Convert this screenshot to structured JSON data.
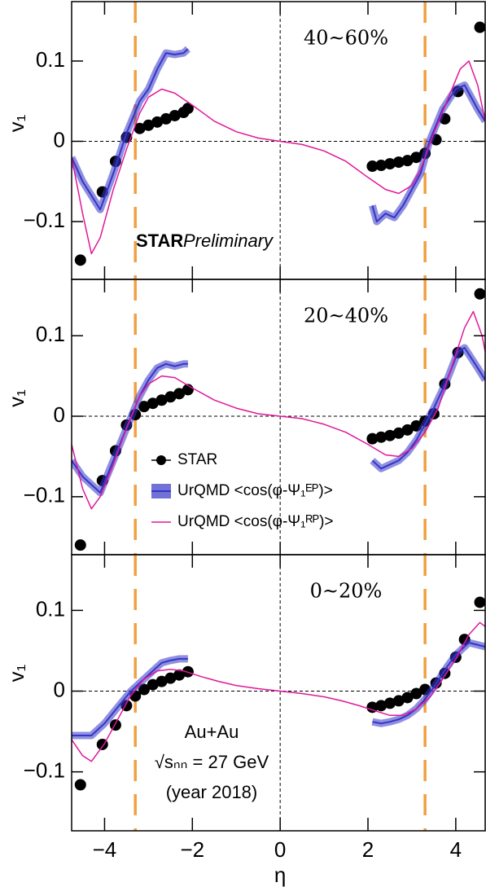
{
  "chart_data": [
    {
      "type": "line",
      "title": "40~60%",
      "ylabel": "v₁",
      "xlim": [
        -4.75,
        4.67
      ],
      "ylim": [
        -0.172,
        0.174
      ],
      "xticks": [
        -4,
        -2,
        0,
        2,
        4
      ],
      "yticks": [
        {
          "value": -0.1,
          "label": "−0.1"
        },
        0,
        0.1
      ],
      "hlines": [
        {
          "y": 0,
          "color": "#000000"
        }
      ],
      "vlines": [
        {
          "x": 0,
          "color": "#000000"
        },
        {
          "x": -3.3,
          "color": "#f0a040"
        },
        {
          "x": 3.3,
          "color": "#f0a040"
        }
      ],
      "annotations": [
        "STAR",
        "Preliminary"
      ],
      "series": [
        {
          "style": "markers",
          "color": "#000000",
          "x": [
            -4.55,
            -4.05,
            -3.75,
            -3.5,
            -3.2,
            -3.0,
            -2.8,
            -2.6,
            -2.4,
            -2.2,
            -2.1,
            2.1,
            2.3,
            2.5,
            2.7,
            2.9,
            3.1,
            3.3,
            3.55,
            3.75,
            4.05,
            4.55
          ],
          "values": [
            -0.148,
            -0.063,
            -0.025,
            0.005,
            0.016,
            0.02,
            0.024,
            0.028,
            0.032,
            0.036,
            0.041,
            -0.031,
            -0.03,
            -0.028,
            -0.026,
            -0.024,
            -0.02,
            -0.015,
            0.002,
            0.028,
            0.062,
            0.142
          ]
        },
        {
          "style": "band",
          "color": "#3535c8",
          "x": [
            -4.75,
            -4.5,
            -4.1,
            -3.8,
            -3.5,
            -3.2,
            -3.0,
            -2.8,
            -2.6,
            -2.4,
            -2.2,
            -2.1,
            0,
            2.1,
            2.2,
            2.4,
            2.6,
            2.8,
            3.0,
            3.2,
            3.4,
            3.7,
            4.0,
            4.2,
            4.5,
            4.67
          ],
          "values": [
            -0.02,
            -0.05,
            -0.085,
            -0.04,
            0.01,
            0.05,
            0.065,
            0.09,
            0.11,
            0.108,
            0.11,
            0.115,
            null,
            -0.08,
            -0.1,
            -0.09,
            -0.095,
            -0.08,
            -0.06,
            -0.04,
            0.0,
            0.04,
            0.065,
            0.07,
            0.04,
            0.025
          ]
        },
        {
          "style": "line",
          "color": "#e0189a",
          "x": [
            -4.75,
            -4.5,
            -4.3,
            -4.1,
            -3.8,
            -3.5,
            -3.2,
            -3.0,
            -2.7,
            -2.4,
            -2.0,
            -1.5,
            -1.0,
            -0.5,
            0,
            0.5,
            1.0,
            1.5,
            2.0,
            2.4,
            2.7,
            3.0,
            3.2,
            3.5,
            3.8,
            4.1,
            4.3,
            4.5,
            4.67
          ],
          "values": [
            -0.02,
            -0.09,
            -0.14,
            -0.12,
            -0.06,
            -0.01,
            0.035,
            0.055,
            0.065,
            0.06,
            0.045,
            0.025,
            0.012,
            0.004,
            0,
            -0.004,
            -0.012,
            -0.025,
            -0.045,
            -0.06,
            -0.065,
            -0.055,
            -0.035,
            0.01,
            0.05,
            0.09,
            0.1,
            0.07,
            0.025
          ]
        }
      ]
    },
    {
      "type": "line",
      "title": "20~40%",
      "ylabel": "v₁",
      "xlim": [
        -4.75,
        4.67
      ],
      "ylim": [
        -0.172,
        0.17
      ],
      "xticks": [
        -4,
        -2,
        0,
        2,
        4
      ],
      "yticks": [
        {
          "value": -0.1,
          "label": "−0.1"
        },
        0,
        0.1
      ],
      "hlines": [
        {
          "y": 0,
          "color": "#000000"
        }
      ],
      "vlines": [
        {
          "x": 0,
          "color": "#000000"
        },
        {
          "x": -3.3,
          "color": "#f0a040"
        },
        {
          "x": 3.3,
          "color": "#f0a040"
        }
      ],
      "series": [
        {
          "name": "STAR",
          "style": "markers",
          "color": "#000000",
          "x": [
            -4.55,
            -4.05,
            -3.75,
            -3.5,
            -3.3,
            -3.1,
            -2.9,
            -2.7,
            -2.5,
            -2.3,
            -2.1,
            2.1,
            2.3,
            2.5,
            2.7,
            2.9,
            3.1,
            3.3,
            3.5,
            3.75,
            4.05,
            4.55
          ],
          "values": [
            -0.16,
            -0.08,
            -0.043,
            -0.011,
            0.002,
            0.012,
            0.016,
            0.02,
            0.024,
            0.028,
            0.033,
            -0.028,
            -0.026,
            -0.024,
            -0.021,
            -0.017,
            -0.012,
            -0.006,
            0.003,
            0.04,
            0.079,
            0.152
          ]
        },
        {
          "name": "UrQMD <cos(φ-Ψ₁ᴱᴾ)>",
          "style": "band",
          "color": "#3535c8",
          "x": [
            -4.75,
            -4.5,
            -4.1,
            -3.8,
            -3.5,
            -3.2,
            -3.0,
            -2.8,
            -2.6,
            -2.4,
            -2.2,
            -2.1,
            0,
            2.1,
            2.3,
            2.5,
            2.7,
            2.9,
            3.1,
            3.3,
            3.5,
            3.8,
            4.05,
            4.2,
            4.5,
            4.67
          ],
          "values": [
            -0.055,
            -0.075,
            -0.095,
            -0.055,
            -0.015,
            0.025,
            0.045,
            0.06,
            0.065,
            0.062,
            0.065,
            0.065,
            null,
            -0.055,
            -0.065,
            -0.06,
            -0.055,
            -0.045,
            -0.03,
            -0.01,
            0.01,
            0.045,
            0.08,
            0.085,
            0.06,
            0.045
          ]
        },
        {
          "name": "UrQMD <cos(φ-Ψ₁ᴿᴾ)>",
          "style": "line",
          "color": "#e0189a",
          "x": [
            -4.75,
            -4.5,
            -4.3,
            -4.1,
            -3.8,
            -3.5,
            -3.2,
            -3.0,
            -2.7,
            -2.4,
            -2.0,
            -1.5,
            -1.0,
            -0.5,
            0,
            0.5,
            1.0,
            1.5,
            2.0,
            2.4,
            2.7,
            3.0,
            3.3,
            3.6,
            3.9,
            4.2,
            4.4,
            4.6,
            4.67
          ],
          "values": [
            -0.035,
            -0.09,
            -0.115,
            -0.1,
            -0.06,
            -0.015,
            0.025,
            0.04,
            0.05,
            0.048,
            0.035,
            0.02,
            0.01,
            0.003,
            0,
            -0.003,
            -0.01,
            -0.02,
            -0.035,
            -0.048,
            -0.05,
            -0.04,
            -0.02,
            0.01,
            0.06,
            0.11,
            0.13,
            0.1,
            0.08
          ]
        }
      ]
    },
    {
      "type": "line",
      "title": "0~20%",
      "ylabel": "v₁",
      "xlabel": "η",
      "xlim": [
        -4.75,
        4.67
      ],
      "ylim": [
        -0.173,
        0.169
      ],
      "xticks": [
        {
          "value": -4,
          "label": "−4"
        },
        {
          "value": -2,
          "label": "−2"
        },
        0,
        2,
        4
      ],
      "yticks": [
        {
          "value": -0.1,
          "label": "−0.1"
        },
        0,
        0.1
      ],
      "hlines": [
        {
          "y": 0,
          "color": "#000000"
        }
      ],
      "vlines": [
        {
          "x": 0,
          "color": "#000000"
        },
        {
          "x": -3.3,
          "color": "#f0a040"
        },
        {
          "x": 3.3,
          "color": "#f0a040"
        }
      ],
      "annotations": [
        "Au+Au",
        "√sₙₙ = 27 GeV",
        "(year 2018)"
      ],
      "series": [
        {
          "style": "markers",
          "color": "#000000",
          "x": [
            -4.55,
            -4.05,
            -3.75,
            -3.5,
            -3.3,
            -3.1,
            -2.9,
            -2.7,
            -2.5,
            -2.3,
            -2.1,
            2.1,
            2.3,
            2.5,
            2.7,
            2.9,
            3.1,
            3.3,
            3.55,
            3.75,
            4.0,
            4.2,
            4.55
          ],
          "values": [
            -0.116,
            -0.066,
            -0.042,
            -0.018,
            -0.006,
            0.002,
            0.008,
            0.012,
            0.016,
            0.02,
            0.024,
            -0.02,
            -0.018,
            -0.015,
            -0.012,
            -0.008,
            -0.003,
            0.002,
            0.01,
            0.022,
            0.042,
            0.064,
            0.11
          ]
        },
        {
          "style": "band",
          "color": "#3535c8",
          "x": [
            -4.75,
            -4.3,
            -4.0,
            -3.7,
            -3.4,
            -3.1,
            -2.9,
            -2.7,
            -2.5,
            -2.3,
            -2.1,
            0,
            2.1,
            2.3,
            2.5,
            2.7,
            2.9,
            3.1,
            3.3,
            3.5,
            3.8,
            4.0,
            4.3,
            4.67
          ],
          "values": [
            -0.055,
            -0.055,
            -0.04,
            -0.02,
            0.0,
            0.015,
            0.025,
            0.035,
            0.038,
            0.04,
            0.04,
            null,
            -0.038,
            -0.04,
            -0.038,
            -0.035,
            -0.03,
            -0.022,
            -0.01,
            0.005,
            0.03,
            0.045,
            0.06,
            0.055
          ]
        },
        {
          "style": "line",
          "color": "#e0189a",
          "x": [
            -4.75,
            -4.5,
            -4.3,
            -4.0,
            -3.7,
            -3.4,
            -3.1,
            -2.8,
            -2.5,
            -2.2,
            -1.8,
            -1.4,
            -1.0,
            -0.5,
            0,
            0.5,
            1.0,
            1.4,
            1.8,
            2.2,
            2.5,
            2.8,
            3.1,
            3.4,
            3.7,
            4.0,
            4.3,
            4.55,
            4.67
          ],
          "values": [
            -0.06,
            -0.08,
            -0.087,
            -0.065,
            -0.035,
            -0.005,
            0.015,
            0.025,
            0.027,
            0.025,
            0.018,
            0.012,
            0.007,
            0.003,
            0,
            -0.003,
            -0.007,
            -0.012,
            -0.018,
            -0.025,
            -0.03,
            -0.03,
            -0.022,
            -0.008,
            0.015,
            0.04,
            0.07,
            0.085,
            0.08
          ]
        }
      ]
    }
  ]
}
